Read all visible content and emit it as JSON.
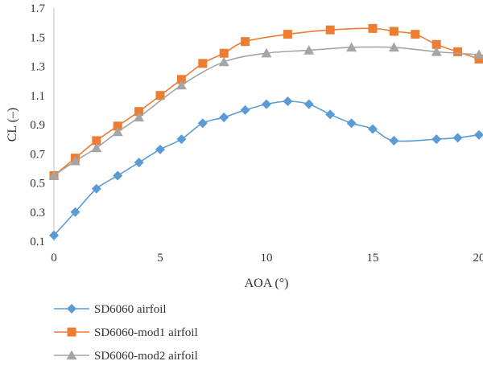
{
  "chart_data": {
    "type": "line",
    "xlabel": "AOA (°)",
    "ylabel": "CL (–)",
    "xlim": [
      0,
      20
    ],
    "ylim": [
      0.1,
      1.7
    ],
    "x_ticks": [
      0,
      5,
      10,
      15,
      20
    ],
    "x_tick_labels": [
      "0",
      "5",
      "10",
      "15",
      "20"
    ],
    "y_ticks": [
      0.1,
      0.3,
      0.5,
      0.7,
      0.9,
      1.1,
      1.3,
      1.5,
      1.7
    ],
    "y_tick_labels": [
      "0.1",
      "0.3",
      "0.5",
      "0.7",
      "0.9",
      "1.1",
      "1.3",
      "1.5",
      "1.7"
    ],
    "grid": false,
    "legend_position": "bottom-left",
    "series": [
      {
        "name": "SD6060 airfoil",
        "color": "#5B9BD5",
        "marker": "diamond",
        "x": [
          0,
          1,
          2,
          3,
          4,
          5,
          6,
          7,
          8,
          9,
          10,
          11,
          12,
          13,
          14,
          15,
          16,
          18,
          19,
          20
        ],
        "y": [
          0.14,
          0.3,
          0.46,
          0.55,
          0.64,
          0.73,
          0.8,
          0.91,
          0.95,
          1.0,
          1.04,
          1.06,
          1.04,
          0.97,
          0.91,
          0.87,
          0.79,
          0.8,
          0.81,
          0.83
        ]
      },
      {
        "name": "SD6060-mod1 airfoil",
        "color": "#ED7D31",
        "marker": "square",
        "x": [
          0,
          1,
          2,
          3,
          4,
          5,
          6,
          7,
          8,
          9,
          11,
          13,
          15,
          16,
          17,
          18,
          19,
          20
        ],
        "y": [
          0.55,
          0.67,
          0.79,
          0.89,
          0.99,
          1.1,
          1.21,
          1.32,
          1.39,
          1.47,
          1.52,
          1.55,
          1.56,
          1.54,
          1.52,
          1.45,
          1.4,
          1.35
        ]
      },
      {
        "name": "SD6060-mod2 airfoil",
        "color": "#A5A5A5",
        "marker": "triangle",
        "x": [
          0,
          1,
          2,
          3,
          4,
          6,
          8,
          10,
          12,
          14,
          16,
          18,
          20
        ],
        "y": [
          0.55,
          0.65,
          0.74,
          0.85,
          0.95,
          1.17,
          1.33,
          1.39,
          1.41,
          1.43,
          1.43,
          1.4,
          1.38
        ]
      }
    ]
  }
}
